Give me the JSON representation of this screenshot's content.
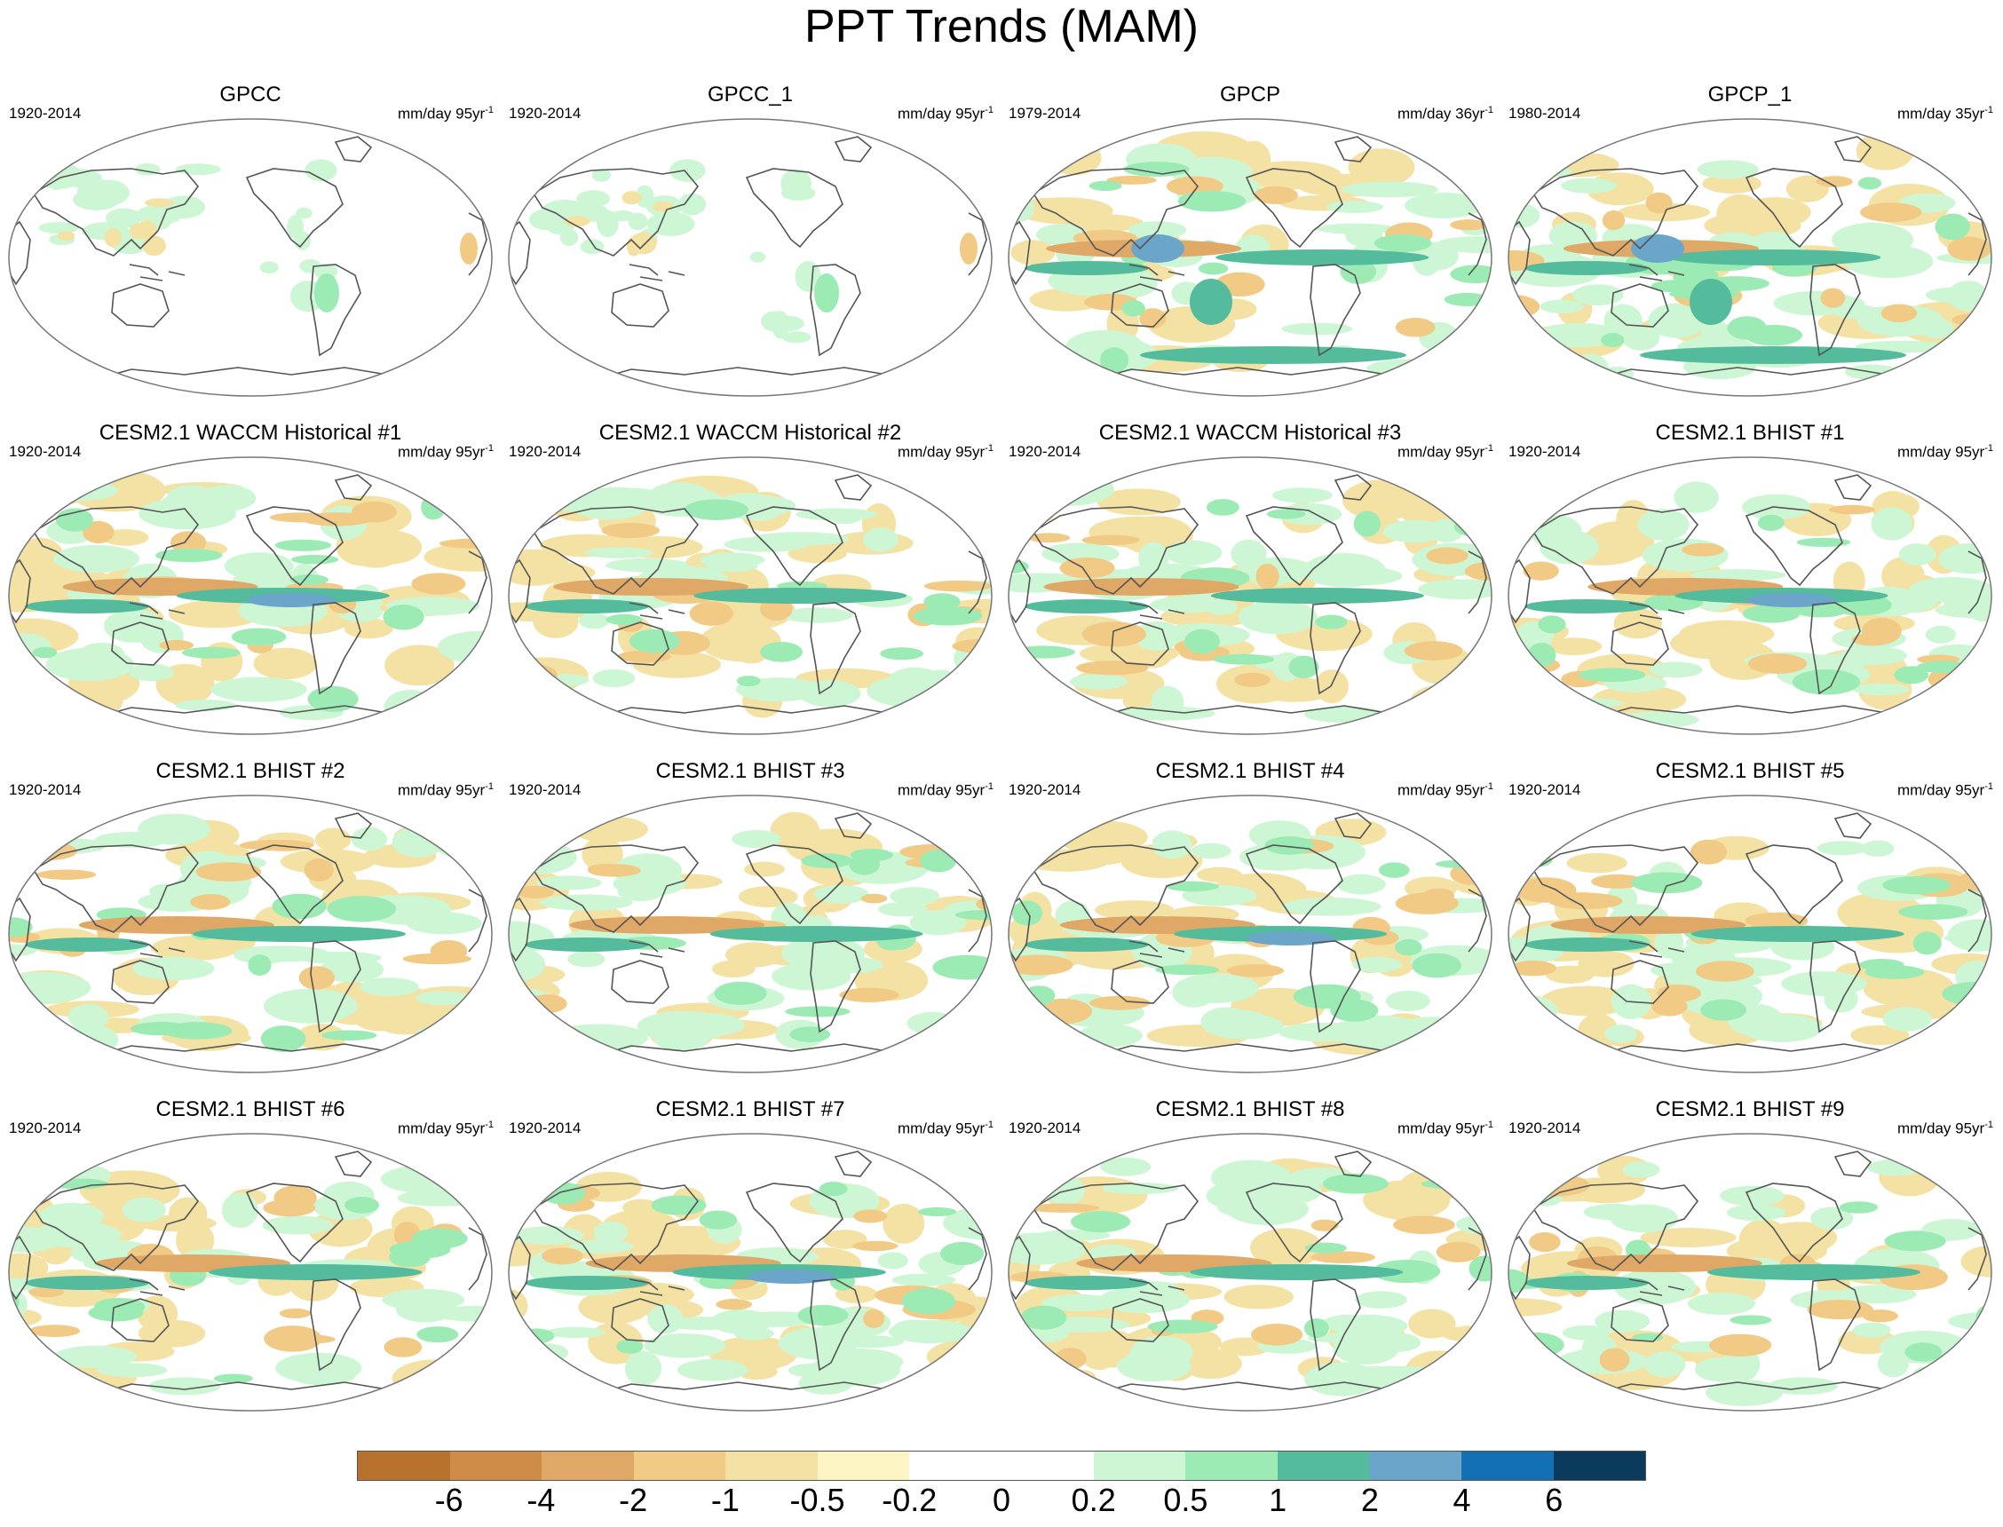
{
  "title": "PPT Trends (MAM)",
  "colorbar": {
    "colors": [
      "#b8722e",
      "#cf8b48",
      "#e0a866",
      "#f1cb86",
      "#f4e2a4",
      "#fdf6c4",
      "#ffffff",
      "#ffffff",
      "#cdf7d4",
      "#9debb4",
      "#54bc9c",
      "#6ba5c9",
      "#1470b4",
      "#0b3b5c"
    ],
    "labels": [
      "-6",
      "-4",
      "-2",
      "-1",
      "-0.5",
      "-0.2",
      "0",
      "0.2",
      "0.5",
      "1",
      "2",
      "4",
      "6"
    ]
  },
  "panels": [
    {
      "title": "GPCC",
      "period": "1920-2014",
      "units": "mm/day 95yr",
      "units_exp": "-1"
    },
    {
      "title": "GPCC_1",
      "period": "1920-2014",
      "units": "mm/day 95yr",
      "units_exp": "-1"
    },
    {
      "title": "GPCP",
      "period": "1979-2014",
      "units": "mm/day 36yr",
      "units_exp": "-1"
    },
    {
      "title": "GPCP_1",
      "period": "1980-2014",
      "units": "mm/day 35yr",
      "units_exp": "-1"
    },
    {
      "title": "CESM2.1 WACCM Historical #1",
      "period": "1920-2014",
      "units": "mm/day 95yr",
      "units_exp": "-1"
    },
    {
      "title": "CESM2.1 WACCM Historical #2",
      "period": "1920-2014",
      "units": "mm/day 95yr",
      "units_exp": "-1"
    },
    {
      "title": "CESM2.1 WACCM Historical #3",
      "period": "1920-2014",
      "units": "mm/day 95yr",
      "units_exp": "-1"
    },
    {
      "title": "CESM2.1 BHIST #1",
      "period": "1920-2014",
      "units": "mm/day 95yr",
      "units_exp": "-1"
    },
    {
      "title": "CESM2.1 BHIST #2",
      "period": "1920-2014",
      "units": "mm/day 95yr",
      "units_exp": "-1"
    },
    {
      "title": "CESM2.1 BHIST #3",
      "period": "1920-2014",
      "units": "mm/day 95yr",
      "units_exp": "-1"
    },
    {
      "title": "CESM2.1 BHIST #4",
      "period": "1920-2014",
      "units": "mm/day 95yr",
      "units_exp": "-1"
    },
    {
      "title": "CESM2.1 BHIST #5",
      "period": "1920-2014",
      "units": "mm/day 95yr",
      "units_exp": "-1"
    },
    {
      "title": "CESM2.1 BHIST #6",
      "period": "1920-2014",
      "units": "mm/day 95yr",
      "units_exp": "-1"
    },
    {
      "title": "CESM2.1 BHIST #7",
      "period": "1920-2014",
      "units": "mm/day 95yr",
      "units_exp": "-1"
    },
    {
      "title": "CESM2.1 BHIST #8",
      "period": "1920-2014",
      "units": "mm/day 95yr",
      "units_exp": "-1"
    },
    {
      "title": "CESM2.1 BHIST #9",
      "period": "1920-2014",
      "units": "mm/day 95yr",
      "units_exp": "-1"
    }
  ]
}
